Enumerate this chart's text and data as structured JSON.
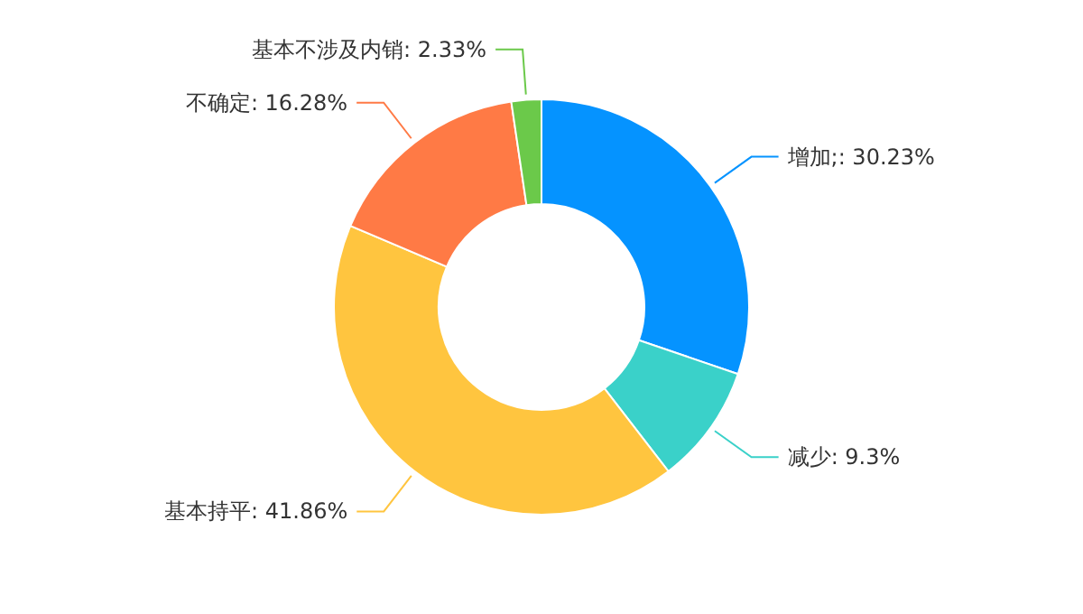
{
  "chart_data": {
    "type": "donut",
    "categories": [
      "增加",
      "减少",
      "基本持平",
      "不确定",
      "基本不涉及内销"
    ],
    "values": [
      30.23,
      9.3,
      41.86,
      16.28,
      2.33
    ],
    "value_labels": [
      ";: 30.23%",
      ": 9.3%",
      ": 41.86%",
      ": 16.28%",
      ": 2.33%"
    ],
    "colors": [
      "#0593ff",
      "#3ad1c9",
      "#ffc53f",
      "#ff7a45",
      "#6bc94a"
    ]
  }
}
